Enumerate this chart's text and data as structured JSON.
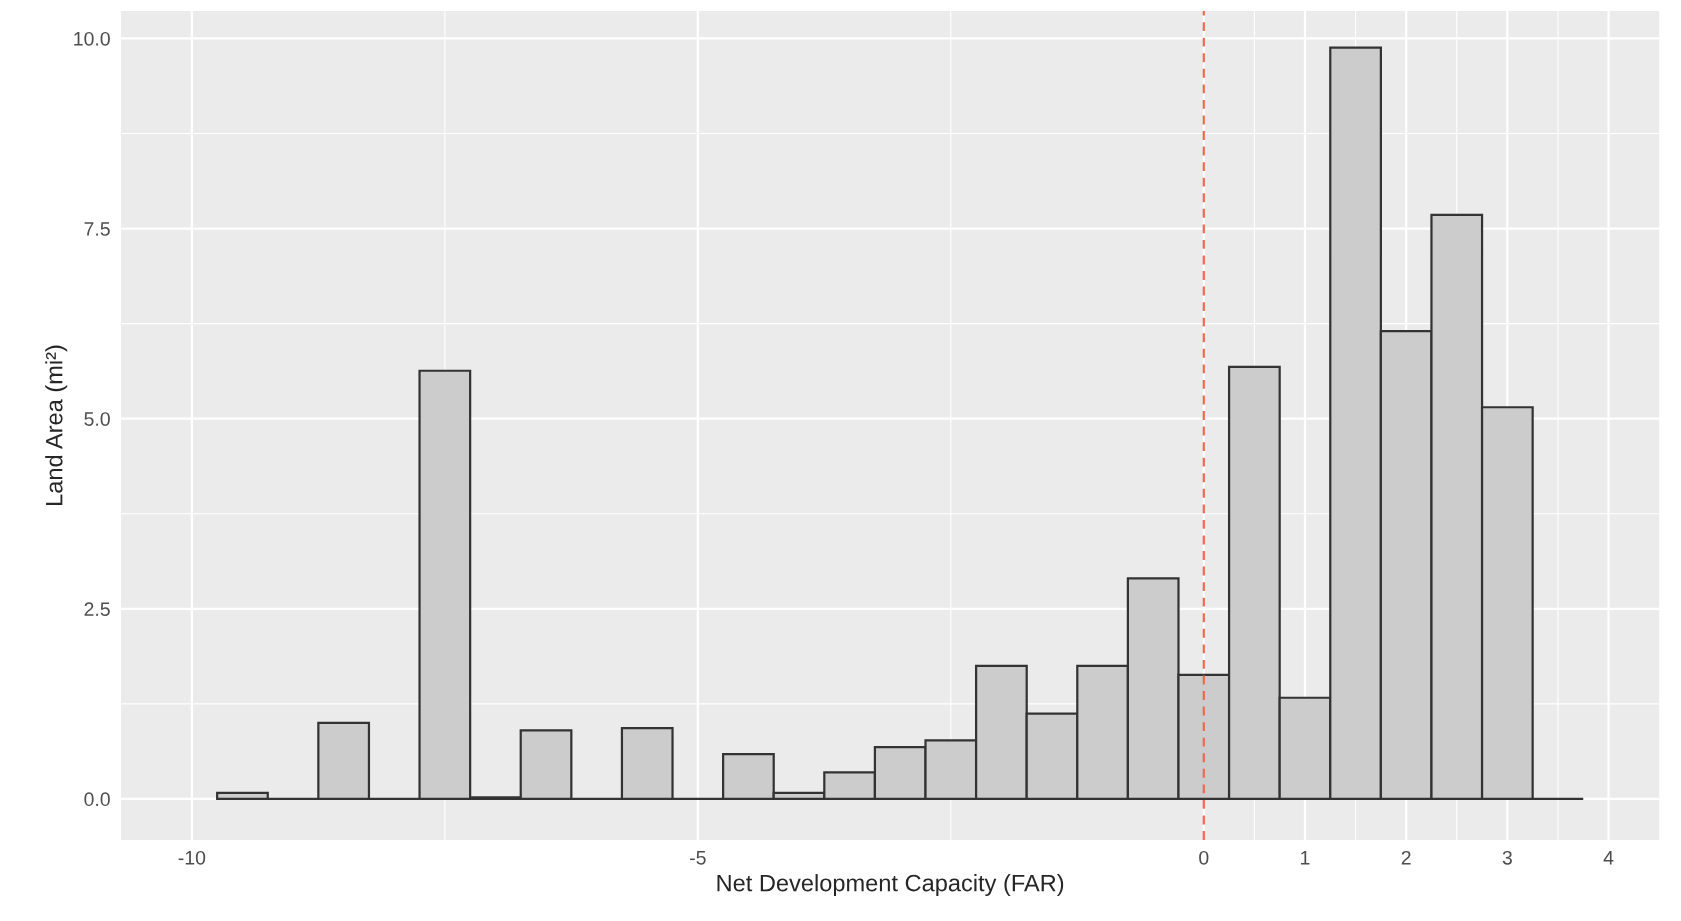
{
  "chart_data": {
    "type": "histogram",
    "xlabel": "Net Development Capacity (FAR)",
    "ylabel": "Land Area (mi²)",
    "bins": [
      -9.75,
      -9.25,
      -8.75,
      -8.25,
      -7.75,
      -7.25,
      -6.75,
      -6.25,
      -5.75,
      -5.25,
      -4.75,
      -4.25,
      -3.75,
      -3.25,
      -2.75,
      -2.25,
      -1.75,
      -1.25,
      -0.75,
      -0.25,
      0.25,
      0.75,
      1.25,
      1.75,
      2.25,
      2.75,
      3.25,
      3.75
    ],
    "values": [
      0.08,
      0,
      1.0,
      0,
      5.63,
      0.02,
      0.9,
      0,
      0.93,
      0,
      0.59,
      0.08,
      0.35,
      0.68,
      0.77,
      1.75,
      1.12,
      1.75,
      2.9,
      1.63,
      5.68,
      1.33,
      9.88,
      6.15,
      7.68,
      5.15,
      0
    ],
    "color": "#cccccc",
    "xlim": [
      -10.7,
      4.5
    ],
    "xticks": [
      -10,
      -5,
      0,
      1,
      2,
      3,
      4
    ],
    "ylim": [
      -0.54,
      10.36
    ],
    "yticks": [
      {
        "value": 0,
        "label": "0.0"
      },
      {
        "value": 2.5,
        "label": "2.5"
      },
      {
        "value": 5,
        "label": "5.0"
      },
      {
        "value": 7.5,
        "label": "7.5"
      },
      {
        "value": 10,
        "label": "10.0"
      }
    ],
    "ref_lines": [
      {
        "axis": "x",
        "value": 0,
        "color": "#f2684e",
        "line_style": "dashed"
      }
    ],
    "grid": true
  }
}
